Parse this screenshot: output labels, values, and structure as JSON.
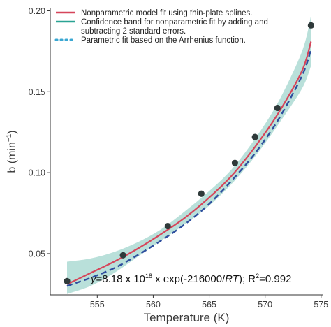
{
  "chart_data": {
    "type": "scatter",
    "xlabel": "Temperature (K)",
    "ylabel": "b (min",
    "ylabel_sup": "−1",
    "ylabel_close": ")",
    "xlim": [
      550.8,
      575.2
    ],
    "ylim": [
      0.0245,
      0.2015
    ],
    "x_ticks": [
      555,
      560,
      565,
      570,
      575
    ],
    "y_ticks": [
      0.05,
      0.1,
      0.15,
      0.2
    ],
    "x_tick_labels": [
      "555",
      "560",
      "565",
      "570",
      "575"
    ],
    "y_tick_labels": [
      "0.05",
      "0.10",
      "0.15",
      "0.20"
    ],
    "grid": false,
    "legend_position": "top-left",
    "colors": {
      "nonparametric": "#d6455a",
      "band": "#7fc7bb",
      "band_legend": "#2aa394",
      "parametric": "#2e4e9e",
      "parametric_legend": "#3aa7d2",
      "points": "#2f3a3a",
      "axis": "#333333"
    },
    "legend": [
      {
        "key": "nonparametric",
        "lines": [
          "Nonparametric model fit using thin-plate splines."
        ]
      },
      {
        "key": "band",
        "lines": [
          "Confidence band for nonparametric fit by adding and",
          "subtracting 2 standard errors."
        ]
      },
      {
        "key": "parametric",
        "lines": [
          "Parametric fit based on the Arrhenius function."
        ]
      }
    ],
    "points": [
      {
        "x": 552.3,
        "y": 0.033
      },
      {
        "x": 557.3,
        "y": 0.049
      },
      {
        "x": 561.3,
        "y": 0.067
      },
      {
        "x": 564.3,
        "y": 0.087
      },
      {
        "x": 567.3,
        "y": 0.106
      },
      {
        "x": 569.1,
        "y": 0.122
      },
      {
        "x": 571.1,
        "y": 0.14
      },
      {
        "x": 574.1,
        "y": 0.191
      }
    ],
    "nonparametric_fit": {
      "x": [
        552.3,
        554.4,
        556.5,
        558.6,
        560.7,
        562.8,
        564.9,
        567.0,
        569.1,
        571.2,
        573.3,
        574.1
      ],
      "y": [
        0.031,
        0.038,
        0.045,
        0.053,
        0.062,
        0.072,
        0.084,
        0.098,
        0.116,
        0.137,
        0.163,
        0.181
      ]
    },
    "confidence_band": {
      "x": [
        552.3,
        554.4,
        556.5,
        558.6,
        560.7,
        562.8,
        564.9,
        567.0,
        569.1,
        571.2,
        573.3,
        574.1
      ],
      "upper": [
        0.045,
        0.047,
        0.051,
        0.057,
        0.065,
        0.076,
        0.088,
        0.102,
        0.121,
        0.144,
        0.175,
        0.197
      ],
      "lower": [
        0.025,
        0.03,
        0.038,
        0.048,
        0.058,
        0.068,
        0.079,
        0.093,
        0.11,
        0.13,
        0.152,
        0.166
      ]
    },
    "parametric_fit": {
      "x": [
        552.3,
        554.4,
        556.5,
        558.6,
        560.7,
        562.8,
        564.9,
        567.0,
        569.1,
        571.2,
        573.3,
        574.1
      ],
      "y": [
        0.03,
        0.035,
        0.041,
        0.049,
        0.058,
        0.068,
        0.08,
        0.095,
        0.112,
        0.133,
        0.16,
        0.176
      ]
    },
    "annotation": {
      "y_var": "y",
      "eq_start": "=8.18 x 10",
      "eq_exp": "18",
      "eq_mid": " x exp(-216000/",
      "eq_rt": "RT",
      "eq_close": "); R",
      "eq_r2sup": "2",
      "eq_tail": "=0.992"
    }
  }
}
